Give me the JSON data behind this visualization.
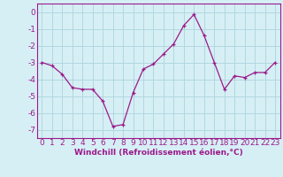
{
  "x": [
    0,
    1,
    2,
    3,
    4,
    5,
    6,
    7,
    8,
    9,
    10,
    11,
    12,
    13,
    14,
    15,
    16,
    17,
    18,
    19,
    20,
    21,
    22,
    23
  ],
  "y": [
    -3.0,
    -3.2,
    -3.7,
    -4.5,
    -4.6,
    -4.6,
    -5.3,
    -6.8,
    -6.7,
    -4.8,
    -3.4,
    -3.1,
    -2.5,
    -1.9,
    -0.8,
    -0.15,
    -1.4,
    -3.0,
    -4.6,
    -3.8,
    -3.9,
    -3.6,
    -3.6,
    -3.0
  ],
  "line_color": "#9b1a8a",
  "marker": "+",
  "bg_color": "#d6eff5",
  "grid_color": "#b0d8e0",
  "xlabel": "Windchill (Refroidissement éolien,°C)",
  "xlabel_color": "#9b1a8a",
  "tick_color": "#9b1a8a",
  "ylim": [
    -7.5,
    0.5
  ],
  "yticks": [
    0,
    -1,
    -2,
    -3,
    -4,
    -5,
    -6,
    -7
  ],
  "xlim": [
    -0.5,
    23.5
  ],
  "xticks": [
    0,
    1,
    2,
    3,
    4,
    5,
    6,
    7,
    8,
    9,
    10,
    11,
    12,
    13,
    14,
    15,
    16,
    17,
    18,
    19,
    20,
    21,
    22,
    23
  ],
  "axis_spine_color": "#9b1a8a",
  "font_size": 6.5
}
